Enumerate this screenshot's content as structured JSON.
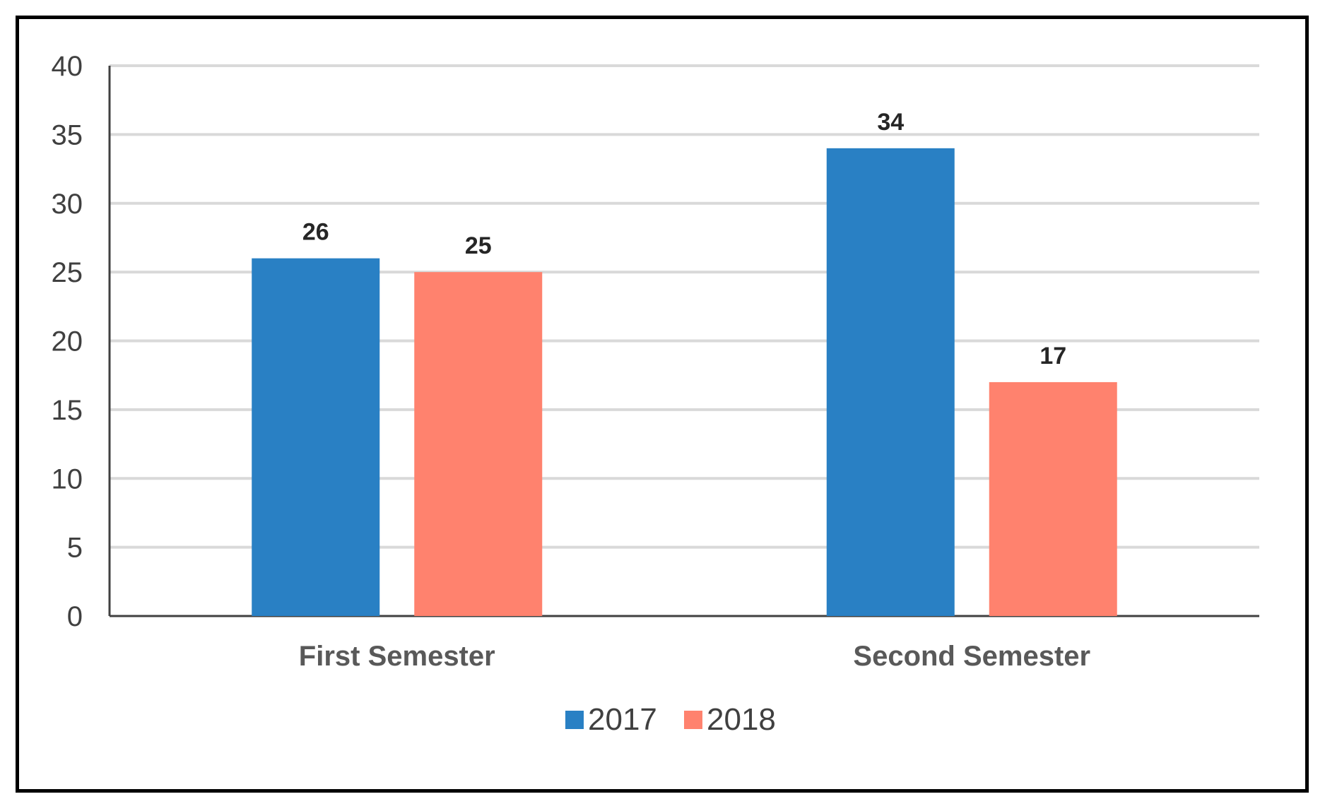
{
  "chart_data": {
    "type": "bar",
    "categories": [
      "First Semester",
      "Second Semester"
    ],
    "series": [
      {
        "name": "2017",
        "values": [
          26,
          34
        ],
        "color": "#2980C4"
      },
      {
        "name": "2018",
        "values": [
          25,
          17
        ],
        "color": "#FF826E"
      }
    ],
    "ylim": [
      0,
      40
    ],
    "yticks": [
      0,
      5,
      10,
      15,
      20,
      25,
      30,
      35,
      40
    ],
    "grid": true,
    "legend": "bottom",
    "data_labels": true,
    "title": "",
    "xlabel": "",
    "ylabel": ""
  }
}
